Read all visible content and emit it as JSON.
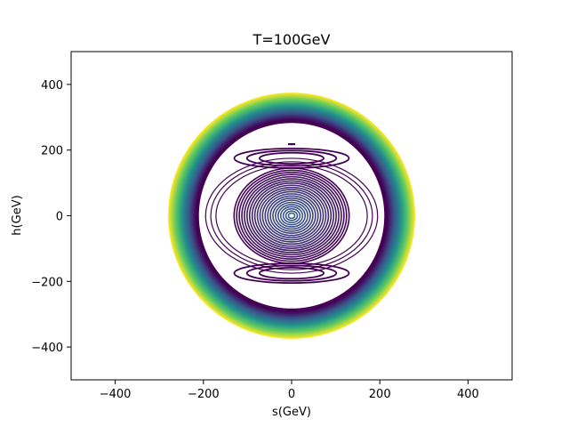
{
  "chart_data": {
    "type": "contour",
    "title": "T=100GeV",
    "xlabel": "s(GeV)",
    "ylabel": "h(GeV)",
    "xlim": [
      -500,
      500
    ],
    "ylim": [
      -500,
      500
    ],
    "xticks": [
      {
        "value": -400,
        "label": "−400"
      },
      {
        "value": -200,
        "label": "−200"
      },
      {
        "value": 0,
        "label": "0"
      },
      {
        "value": 200,
        "label": "200"
      },
      {
        "value": 400,
        "label": "400"
      }
    ],
    "yticks": [
      {
        "value": -400,
        "label": "−400"
      },
      {
        "value": -200,
        "label": "−200"
      },
      {
        "value": 0,
        "label": "0"
      },
      {
        "value": 200,
        "label": "200"
      },
      {
        "value": 400,
        "label": "400"
      }
    ],
    "grid": false,
    "colormap": "viridis",
    "colormap_stops": [
      "#440154",
      "#3b528b",
      "#21918c",
      "#5ec962",
      "#fde725"
    ],
    "center": {
      "s": 0,
      "h": 0
    },
    "outer_band": {
      "s_radius_min": 215,
      "s_radius_max": 278,
      "h_radius_min": 290,
      "h_radius_max": 372,
      "levels": 40
    },
    "outer_ring_dark": {
      "s_radius": 212,
      "h_radius": 285
    },
    "inner_rings": {
      "h_radius_min": 8,
      "h_radius_max": 145,
      "s_to_h_ratio": 0.9,
      "levels": 22
    },
    "side_rings": {
      "s_radius": 195,
      "h_radius": 175,
      "count": 3
    },
    "lobes": [
      {
        "s": 0,
        "h": 175,
        "s_half_width": 130,
        "h_half_height": 30
      },
      {
        "s": 0,
        "h": -175,
        "s_half_width": 130,
        "h_half_height": 30
      }
    ],
    "dashes": [
      {
        "s_from": -8,
        "s_to": 8,
        "h": 218
      }
    ]
  }
}
